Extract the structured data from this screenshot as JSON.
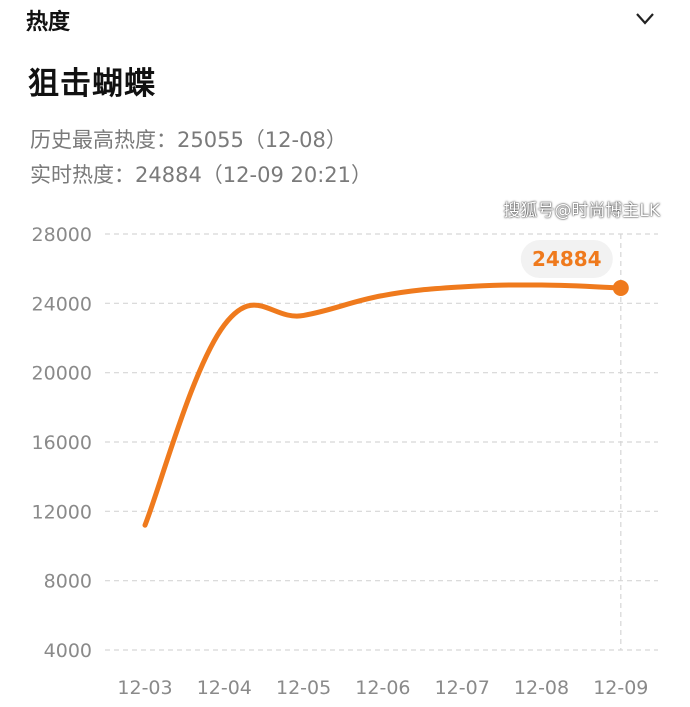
{
  "header": {
    "section_label": "热度",
    "collapse_icon": "chevron-down-icon"
  },
  "title": "狙击蝴蝶",
  "info": {
    "peak_line": "历史最高热度：25055（12-08）",
    "realtime_line": "实时热度：24884（12-09 20:21）"
  },
  "chart_data": {
    "type": "line",
    "categories": [
      "12-03",
      "12-04",
      "12-05",
      "12-06",
      "12-07",
      "12-08",
      "12-09"
    ],
    "values": [
      11200,
      22750,
      23300,
      24450,
      24950,
      25055,
      24884
    ],
    "yticks": [
      4000,
      8000,
      12000,
      16000,
      20000,
      24000,
      28000
    ],
    "ylim": [
      4000,
      28000
    ],
    "grid": true,
    "highlight": {
      "category": "12-09",
      "label": "24884"
    },
    "color": "#ef7a1d"
  },
  "watermark": "搜狐号@时尚博主LK"
}
